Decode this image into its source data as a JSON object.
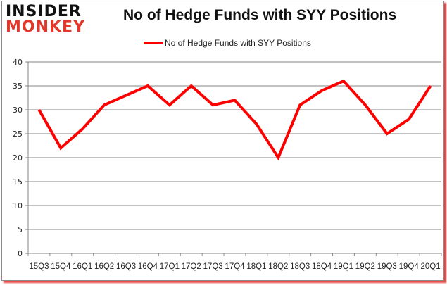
{
  "logo": {
    "line1": "INSIDER",
    "line2": "MONKEY"
  },
  "title": "No of Hedge Funds with SYY Positions",
  "legend": {
    "label": "No of Hedge Funds with SYY Positions",
    "color": "#ff0000"
  },
  "colors": {
    "line": "#ff0000",
    "grid": "#868686",
    "axis": "#868686",
    "brand_red": "#e0392b"
  },
  "chart_data": {
    "type": "line",
    "title": "No of Hedge Funds with SYY Positions",
    "xlabel": "",
    "ylabel": "",
    "categories": [
      "15Q3",
      "15Q4",
      "16Q1",
      "16Q2",
      "16Q3",
      "16Q4",
      "17Q1",
      "17Q2",
      "17Q3",
      "17Q4",
      "18Q1",
      "18Q2",
      "18Q3",
      "18Q4",
      "19Q1",
      "19Q2",
      "19Q3",
      "19Q4",
      "20Q1"
    ],
    "series": [
      {
        "name": "No of Hedge Funds with SYY Positions",
        "values": [
          30,
          22,
          26,
          31,
          33,
          35,
          31,
          35,
          31,
          32,
          27,
          20,
          31,
          34,
          36,
          31,
          25,
          28,
          35
        ]
      }
    ],
    "ylim": [
      0,
      40
    ],
    "yticks": [
      0,
      5,
      10,
      15,
      20,
      25,
      30,
      35,
      40
    ],
    "grid": true,
    "legend_position": "top"
  }
}
